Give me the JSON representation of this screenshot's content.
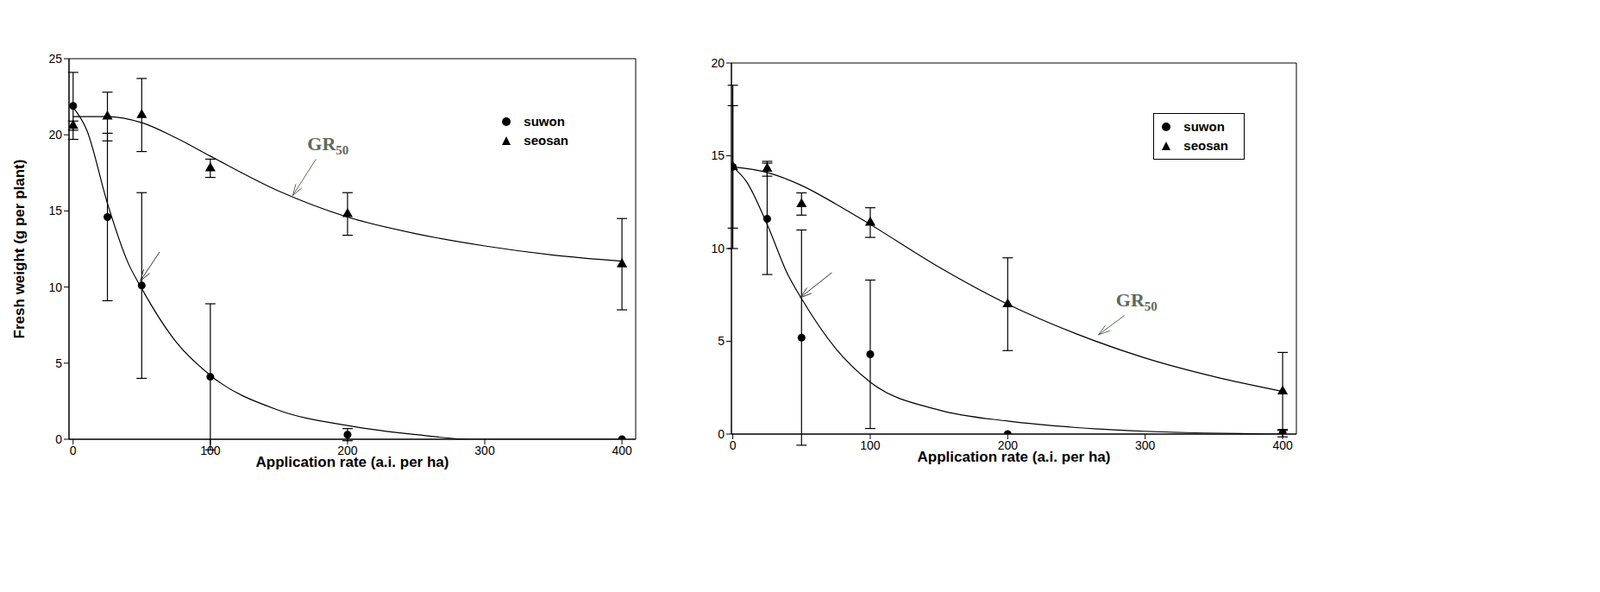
{
  "chart_data": [
    {
      "type": "scatter",
      "x_label": "Application rate (a.i. per ha)",
      "y_label": "Fresh weight (g per plant)",
      "x": [
        0,
        25,
        50,
        100,
        200,
        400
      ],
      "xlim": [
        -3,
        410
      ],
      "xticks": [
        0,
        100,
        200,
        300,
        400
      ],
      "ylim": [
        0,
        25
      ],
      "yticks": [
        0,
        5,
        10,
        15,
        20,
        25
      ],
      "legend": "upper right",
      "series": [
        {
          "name": "suwon",
          "color": "#000000",
          "marker": "circle",
          "values": [
            21.9,
            14.6,
            10.1,
            4.1,
            0.3,
            0
          ],
          "errors": [
            2.2,
            5.5,
            6.1,
            4.8,
            0.4,
            0
          ],
          "fit": {
            "x": [
              0,
              10,
              25,
              40,
              50,
              75,
              100,
              150,
              200,
              250,
              290,
              400
            ],
            "values": [
              21.8,
              20.3,
              15.5,
              11.6,
              9.9,
              6.4,
              4.2,
              1.9,
              0.9,
              0.3,
              0,
              0
            ]
          }
        },
        {
          "name": "seosan",
          "color": "#000000",
          "marker": "triangle",
          "values": [
            20.6,
            21.2,
            21.3,
            17.8,
            14.8,
            11.5
          ],
          "errors": [
            0.3,
            1.6,
            2.4,
            0.6,
            1.4,
            3.0
          ],
          "fit": {
            "x": [
              0,
              25,
              50,
              75,
              100,
              150,
              200,
              250,
              300,
              350,
              400
            ],
            "values": [
              21.2,
              21.2,
              20.8,
              19.8,
              18.6,
              16.3,
              14.6,
              13.5,
              12.7,
              12.1,
              11.7
            ]
          }
        }
      ],
      "annotations": [
        {
          "text": "GR",
          "subscript": "50",
          "color": "#5b6b5b",
          "from": [
            177,
            18.4
          ],
          "to": [
            160,
            16.0
          ]
        },
        {
          "from": [
            63,
            12.3
          ],
          "to": [
            49,
            10.4
          ]
        }
      ]
    },
    {
      "type": "scatter",
      "x_label": "Application rate (a.i. per ha)",
      "x": [
        0,
        25,
        50,
        100,
        200,
        400
      ],
      "xlim": [
        -1,
        410
      ],
      "xticks": [
        0,
        100,
        200,
        300,
        400
      ],
      "ylim": [
        0,
        20
      ],
      "yticks": [
        0,
        5,
        10,
        15,
        20
      ],
      "legend": "upper right",
      "series": [
        {
          "name": "suwon",
          "color": "#000000",
          "marker": "circle",
          "values": [
            14.4,
            11.6,
            5.2,
            4.3,
            0,
            0.05
          ],
          "errors": [
            4.4,
            3.0,
            5.8,
            4.0,
            0,
            0.2
          ],
          "fit": {
            "x": [
              0,
              10,
              25,
              40,
              50,
              75,
              100,
              150,
              200,
              250,
              300,
              400
            ],
            "values": [
              14.4,
              13.6,
              11.3,
              8.6,
              7.3,
              4.6,
              2.8,
              1.3,
              0.7,
              0.35,
              0.15,
              0
            ]
          }
        },
        {
          "name": "seosan",
          "color": "#000000",
          "marker": "triangle",
          "values": [
            14.4,
            14.3,
            12.4,
            11.4,
            7.0,
            2.3
          ],
          "errors": [
            3.3,
            0.4,
            0.6,
            0.8,
            2.5,
            2.1
          ],
          "fit": {
            "x": [
              0,
              25,
              50,
              75,
              100,
              150,
              200,
              250,
              300,
              350,
              400
            ],
            "values": [
              14.4,
              14.1,
              13.4,
              12.4,
              11.3,
              9.0,
              7.0,
              5.4,
              4.1,
              3.1,
              2.3
            ]
          }
        }
      ],
      "annotations": [
        {
          "text": "GR",
          "subscript": "50",
          "color": "#5b6b5b",
          "from": [
            285,
            6.4
          ],
          "to": [
            266,
            5.35
          ]
        },
        {
          "from": [
            72,
            8.7
          ],
          "to": [
            49,
            7.35
          ]
        }
      ]
    }
  ]
}
